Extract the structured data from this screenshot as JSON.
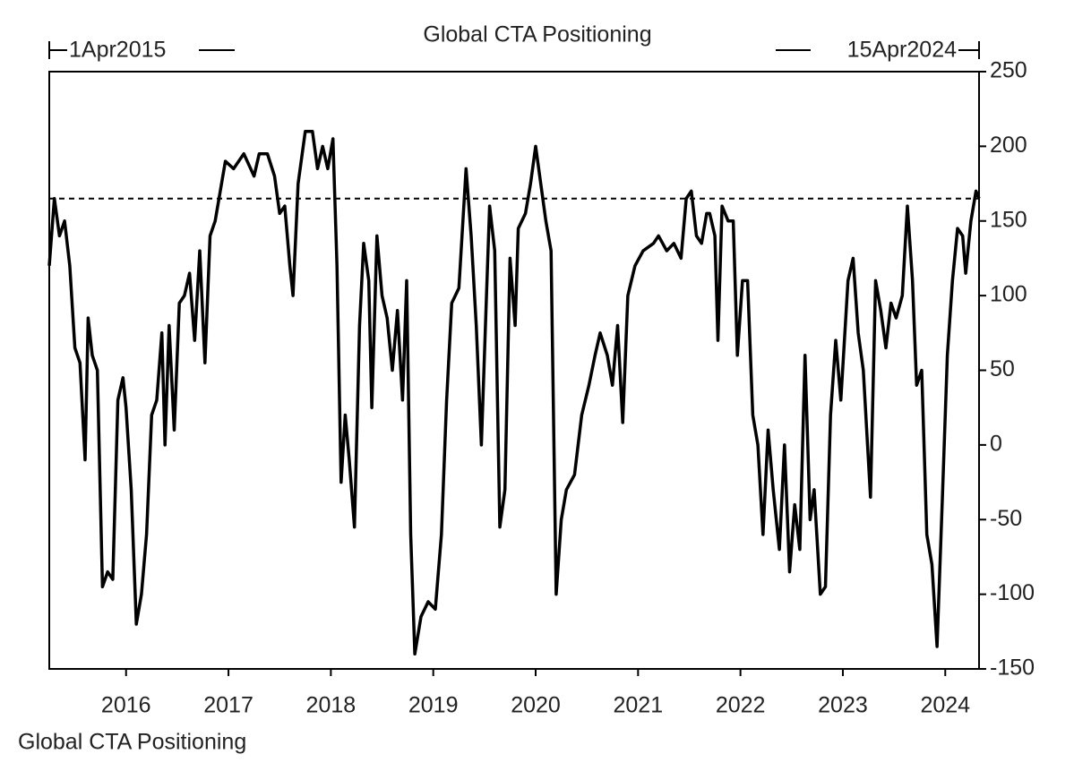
{
  "chart_data": {
    "type": "line",
    "title": "Global CTA Positioning",
    "start_label": "1Apr2015",
    "end_label": "15Apr2024",
    "legend_label": "Global CTA Positioning",
    "xlim": [
      2015.25,
      2024.33
    ],
    "xticks": [
      2016,
      2017,
      2018,
      2019,
      2020,
      2021,
      2022,
      2023,
      2024
    ],
    "ylim": [
      -150,
      250
    ],
    "yticks": [
      -150,
      -100,
      -50,
      0,
      50,
      100,
      150,
      200,
      250
    ],
    "reference_line": 165,
    "color": "#000000",
    "x": [
      2015.25,
      2015.3,
      2015.35,
      2015.4,
      2015.45,
      2015.5,
      2015.55,
      2015.6,
      2015.63,
      2015.67,
      2015.72,
      2015.77,
      2015.82,
      2015.87,
      2015.92,
      2015.97,
      2016.0,
      2016.05,
      2016.1,
      2016.15,
      2016.2,
      2016.25,
      2016.3,
      2016.35,
      2016.38,
      2016.42,
      2016.47,
      2016.52,
      2016.57,
      2016.62,
      2016.67,
      2016.72,
      2016.77,
      2016.82,
      2016.87,
      2016.92,
      2016.97,
      2017.05,
      2017.15,
      2017.25,
      2017.3,
      2017.38,
      2017.45,
      2017.5,
      2017.55,
      2017.6,
      2017.63,
      2017.68,
      2017.75,
      2017.82,
      2017.87,
      2017.92,
      2017.97,
      2018.02,
      2018.06,
      2018.1,
      2018.14,
      2018.18,
      2018.23,
      2018.28,
      2018.32,
      2018.37,
      2018.4,
      2018.45,
      2018.5,
      2018.55,
      2018.6,
      2018.65,
      2018.7,
      2018.74,
      2018.78,
      2018.82,
      2018.88,
      2018.95,
      2019.02,
      2019.08,
      2019.13,
      2019.18,
      2019.25,
      2019.32,
      2019.37,
      2019.42,
      2019.47,
      2019.52,
      2019.55,
      2019.6,
      2019.65,
      2019.7,
      2019.75,
      2019.8,
      2019.83,
      2019.9,
      2019.95,
      2020.0,
      2020.05,
      2020.1,
      2020.15,
      2020.2,
      2020.25,
      2020.3,
      2020.38,
      2020.45,
      2020.52,
      2020.58,
      2020.63,
      2020.7,
      2020.75,
      2020.8,
      2020.85,
      2020.9,
      2020.97,
      2021.05,
      2021.15,
      2021.2,
      2021.28,
      2021.35,
      2021.42,
      2021.47,
      2021.52,
      2021.57,
      2021.62,
      2021.67,
      2021.7,
      2021.75,
      2021.78,
      2021.82,
      2021.88,
      2021.93,
      2021.97,
      2022.02,
      2022.07,
      2022.12,
      2022.17,
      2022.22,
      2022.27,
      2022.32,
      2022.38,
      2022.43,
      2022.48,
      2022.53,
      2022.58,
      2022.63,
      2022.68,
      2022.72,
      2022.78,
      2022.83,
      2022.88,
      2022.93,
      2022.98,
      2023.05,
      2023.1,
      2023.15,
      2023.2,
      2023.27,
      2023.32,
      2023.37,
      2023.42,
      2023.47,
      2023.52,
      2023.58,
      2023.63,
      2023.68,
      2023.72,
      2023.77,
      2023.82,
      2023.87,
      2023.92,
      2023.97,
      2024.02,
      2024.07,
      2024.12,
      2024.17,
      2024.2,
      2024.25,
      2024.3,
      2024.33
    ],
    "series": [
      {
        "name": "Global CTA Positioning",
        "values": [
          120,
          165,
          140,
          150,
          120,
          65,
          55,
          -10,
          85,
          60,
          50,
          -95,
          -85,
          -90,
          30,
          45,
          25,
          -30,
          -120,
          -100,
          -60,
          20,
          30,
          75,
          0,
          80,
          10,
          95,
          100,
          115,
          70,
          130,
          55,
          140,
          150,
          170,
          190,
          185,
          195,
          180,
          195,
          195,
          180,
          155,
          160,
          120,
          100,
          175,
          210,
          210,
          185,
          200,
          185,
          205,
          120,
          -25,
          20,
          -10,
          -55,
          80,
          135,
          110,
          25,
          140,
          100,
          85,
          50,
          90,
          30,
          110,
          -60,
          -140,
          -115,
          -105,
          -110,
          -60,
          30,
          95,
          105,
          185,
          140,
          80,
          0,
          100,
          160,
          130,
          -55,
          -30,
          125,
          80,
          145,
          155,
          175,
          200,
          175,
          150,
          130,
          -100,
          -50,
          -30,
          -20,
          20,
          40,
          60,
          75,
          60,
          40,
          80,
          15,
          100,
          120,
          130,
          135,
          140,
          130,
          135,
          125,
          165,
          170,
          140,
          135,
          155,
          155,
          140,
          70,
          160,
          150,
          150,
          60,
          110,
          110,
          20,
          0,
          -60,
          10,
          -30,
          -70,
          0,
          -85,
          -40,
          -70,
          60,
          -50,
          -30,
          -100,
          -95,
          20,
          70,
          30,
          110,
          125,
          75,
          50,
          -35,
          110,
          90,
          65,
          95,
          85,
          100,
          160,
          110,
          40,
          50,
          -60,
          -80,
          -135,
          -40,
          60,
          110,
          145,
          140,
          115,
          150,
          170,
          165
        ]
      }
    ]
  }
}
